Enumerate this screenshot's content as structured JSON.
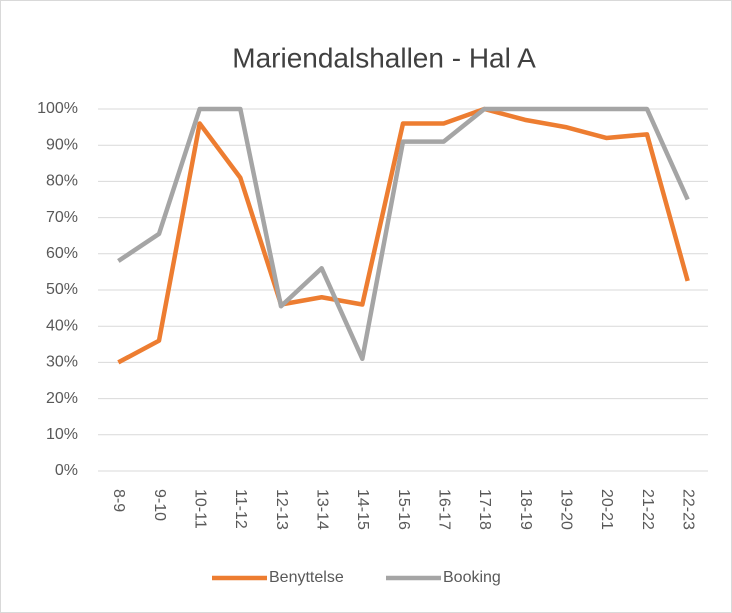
{
  "chart_data": {
    "type": "line",
    "title": "Mariendalshallen - Hal A",
    "categories": [
      "8-9",
      "9-10",
      "10-11",
      "11-12",
      "12-13",
      "13-14",
      "14-15",
      "15-16",
      "16-17",
      "17-18",
      "18-19",
      "19-20",
      "20-21",
      "21-22",
      "22-23"
    ],
    "series": [
      {
        "name": "Benyttelse",
        "color": "#ed7d31",
        "values": [
          30,
          36,
          96,
          81,
          46,
          48,
          46,
          96,
          96,
          100,
          97,
          95,
          92,
          93,
          52.5
        ]
      },
      {
        "name": "Booking",
        "color": "#a5a5a5",
        "values": [
          58,
          65.5,
          100,
          100,
          45.5,
          56,
          31,
          91,
          91,
          100,
          100,
          100,
          100,
          100,
          75
        ]
      }
    ],
    "ylim": [
      0,
      100
    ],
    "yticks": [
      {
        "value": 0,
        "label": "0%"
      },
      {
        "value": 10,
        "label": "10%"
      },
      {
        "value": 20,
        "label": "20%"
      },
      {
        "value": 30,
        "label": "30%"
      },
      {
        "value": 40,
        "label": "40%"
      },
      {
        "value": 50,
        "label": "50%"
      },
      {
        "value": 60,
        "label": "60%"
      },
      {
        "value": 70,
        "label": "70%"
      },
      {
        "value": 80,
        "label": "80%"
      },
      {
        "value": 90,
        "label": "90%"
      },
      {
        "value": 100,
        "label": "100%"
      }
    ],
    "grid": true,
    "legend": "bottom"
  }
}
